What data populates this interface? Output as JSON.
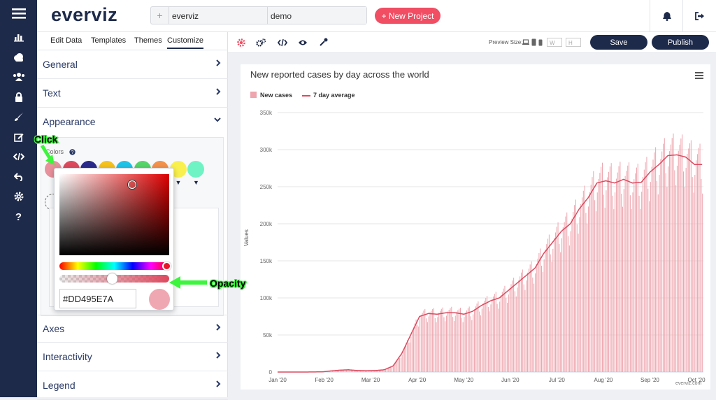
{
  "app": {
    "logo": "everviz"
  },
  "header": {
    "project_prefix": "+",
    "project_name": "everviz",
    "project_sub": "demo",
    "new_project": "+ New Project"
  },
  "nav_icons": [
    "menu-icon",
    "chart-icon",
    "cloud-icon",
    "users-icon",
    "lock-icon",
    "brush-icon",
    "edit-icon",
    "code-icon",
    "undo-icon",
    "gear-icon",
    "help-icon"
  ],
  "panel": {
    "tabs": [
      "Edit Data",
      "Templates",
      "Themes",
      "Customize"
    ],
    "active_tab": "Customize",
    "sections": {
      "general": "General",
      "text": "Text",
      "appearance": "Appearance",
      "axes": "Axes",
      "interactivity": "Interactivity",
      "legend": "Legend"
    },
    "colors_label": "Colors",
    "swatch_colors": [
      "#e8909c",
      "#dd495e",
      "#2a2a8c",
      "#f5c21d",
      "#1fc3e8",
      "#55d46a",
      "#f3924b",
      "#f9f04d",
      "#6ff3c4"
    ]
  },
  "picker": {
    "hex_value": "#DD495E7A",
    "alpha_fraction": 0.48,
    "color": "#dd495e"
  },
  "toolbar": {
    "preview_size_label": "Preview Size:",
    "w_placeholder": "W",
    "h_placeholder": "H",
    "save": "Save",
    "publish": "Publish"
  },
  "annotations": {
    "click": "Click",
    "opacity": "Opacity",
    "color": "#3cf53c"
  },
  "chart_data": {
    "type": "bar",
    "title": "New reported cases by day across the world",
    "ylabel": "Values",
    "ylim": [
      0,
      350000
    ],
    "yticks": [
      "0",
      "50k",
      "100k",
      "150k",
      "200k",
      "250k",
      "300k",
      "350k"
    ],
    "xticks": [
      "Jan '20",
      "Feb '20",
      "Mar '20",
      "Apr '20",
      "May '20",
      "Jun '20",
      "Jul '20",
      "Aug '20",
      "Sep '20",
      "Oct '20"
    ],
    "credit": "everviz.com",
    "legend_placement": "top-left",
    "series": [
      {
        "name": "New cases",
        "type": "column",
        "color": "#eea5ae"
      },
      {
        "name": "7 day average",
        "type": "line",
        "color": "#dd495e"
      }
    ],
    "weekly_average": [
      0,
      0,
      0,
      0,
      100,
      200,
      1500,
      2500,
      3000,
      2000,
      1800,
      2000,
      3000,
      8000,
      25000,
      50000,
      75000,
      79000,
      78000,
      80000,
      80000,
      78000,
      82000,
      90000,
      96000,
      100000,
      110000,
      120000,
      130000,
      140000,
      160000,
      175000,
      190000,
      200000,
      220000,
      235000,
      255000,
      258000,
      255000,
      260000,
      255000,
      256000,
      270000,
      280000,
      292000,
      293000,
      290000,
      280000
    ],
    "daily_spikes_note_period_days": 7
  }
}
